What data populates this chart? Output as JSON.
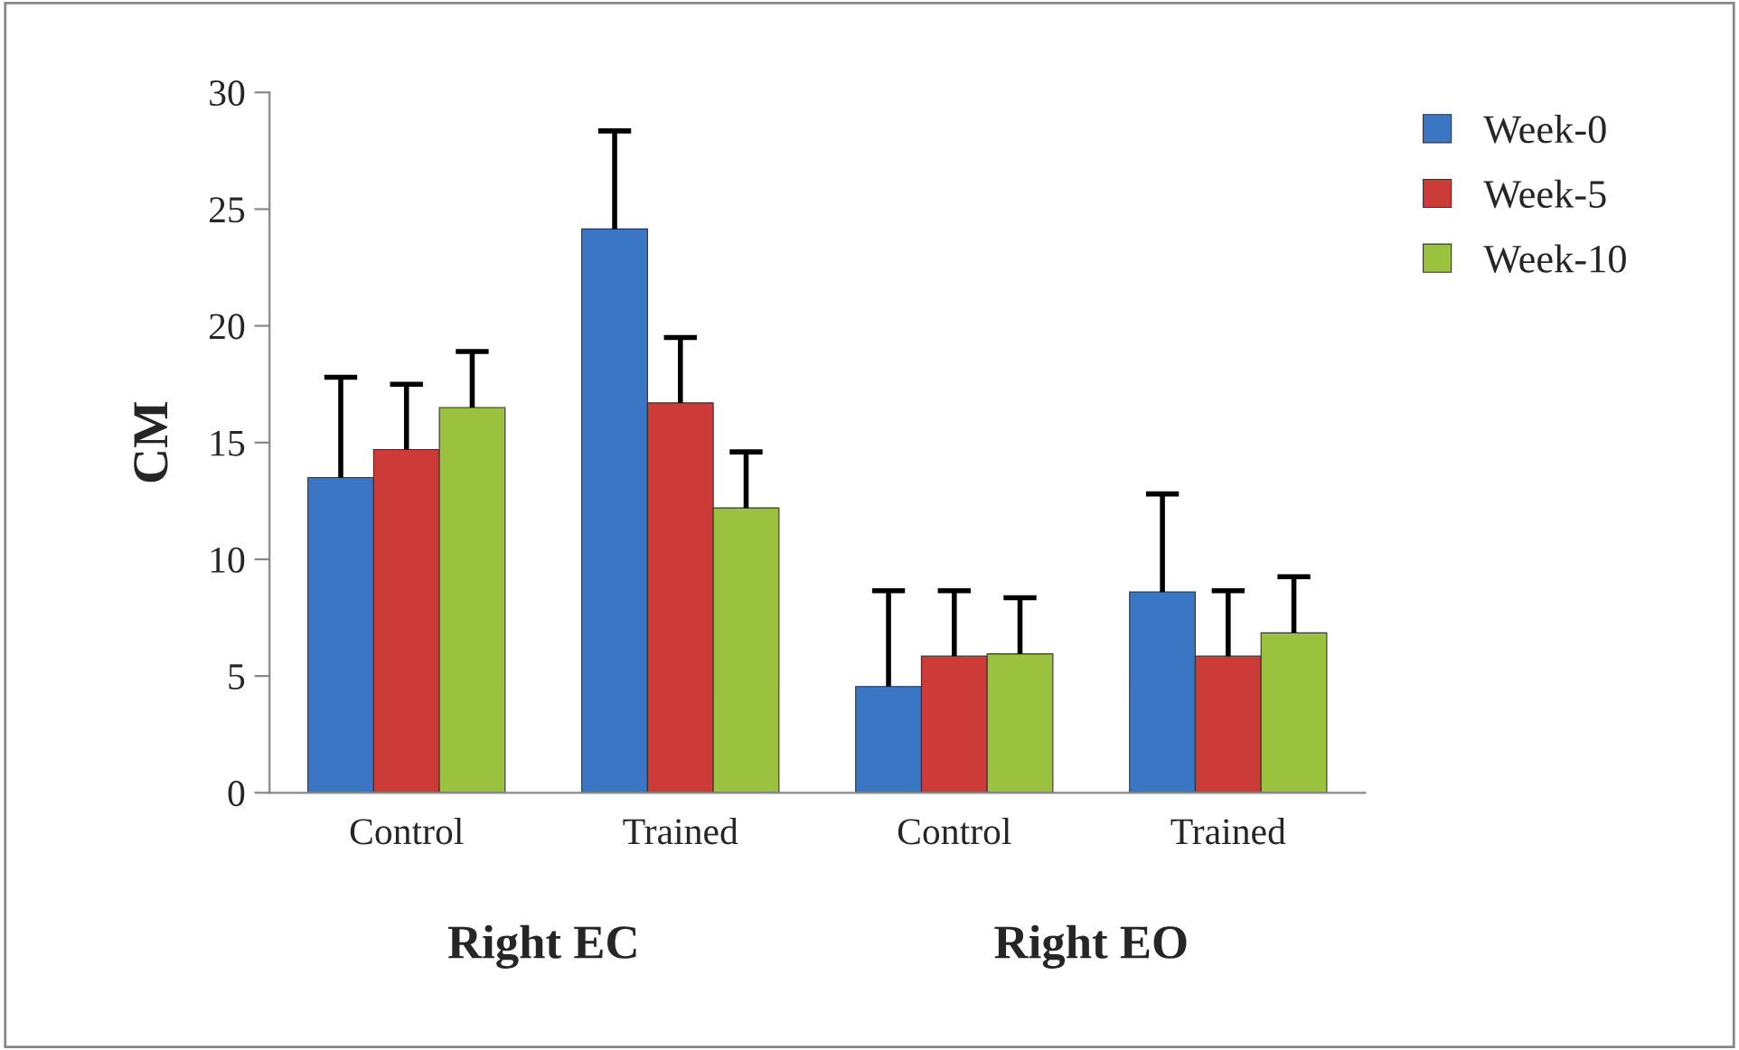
{
  "chart_data": {
    "type": "bar",
    "ylabel": "CM",
    "categories": [
      "Control",
      "Trained",
      "Control",
      "Trained"
    ],
    "series": [
      {
        "name": "Week-0",
        "color": "#3a76c4",
        "values": [
          13.5,
          24.15,
          4.55,
          8.6
        ],
        "errors": [
          [
            13.5,
            17.8
          ],
          [
            24.15,
            28.35
          ],
          [
            4.55,
            8.65
          ],
          [
            8.6,
            12.8
          ]
        ]
      },
      {
        "name": "Week-5",
        "color": "#cc3b38",
        "values": [
          14.7,
          16.7,
          5.85,
          5.85
        ],
        "errors": [
          [
            14.7,
            17.5
          ],
          [
            16.7,
            19.5
          ],
          [
            5.85,
            8.65
          ],
          [
            5.85,
            8.65
          ]
        ]
      },
      {
        "name": "Week-10",
        "color": "#9bc23e",
        "values": [
          16.5,
          12.2,
          5.95,
          6.85
        ],
        "errors": [
          [
            16.5,
            18.9
          ],
          [
            12.2,
            14.6
          ],
          [
            5.95,
            8.35
          ],
          [
            6.85,
            9.25
          ]
        ]
      }
    ],
    "annotations": [
      "Right EC",
      "Right EO"
    ],
    "ylim": [
      0,
      30
    ],
    "yticks": [
      0,
      5,
      10,
      15,
      20,
      25,
      30
    ],
    "grid": false,
    "legend": "top right"
  }
}
